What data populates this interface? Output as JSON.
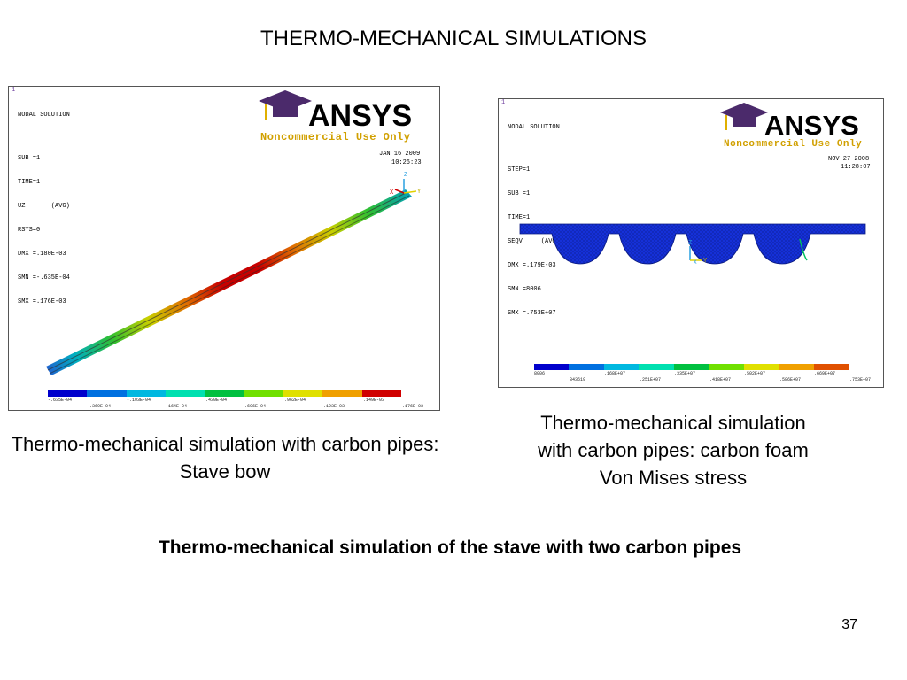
{
  "slide": {
    "title": "THERMO-MECHANICAL SIMULATIONS",
    "page_number": "37",
    "main_caption": "Thermo-mechanical simulation of the stave with two carbon pipes"
  },
  "left_figure": {
    "frame_number": "1",
    "header_lines": [
      "NODAL SOLUTION",
      "SUB =1",
      "TIME=1",
      "UZ       (AVG)",
      "RSYS=0",
      "DMX =.180E-03",
      "SMN =-.635E-04",
      "SMX =.176E-03"
    ],
    "date": "JAN 16 2009",
    "time": "10:26:23",
    "brand": "ANSYS",
    "watermark": "Noncommercial Use Only",
    "axis_labels": {
      "z": "Z",
      "y": "Y",
      "x": "X"
    },
    "colorbar_labels_top": [
      "-.635E-04",
      "-.103E-04",
      ".164E-04",
      ".430E-04",
      ".962E-04",
      ".149E-03"
    ],
    "colorbar_labels_bottom": [
      "-.369E-04",
      ".164E-04",
      ".696E-04",
      ".123E-03",
      ".176E-03"
    ],
    "caption": "Thermo-mechanical simulation with carbon pipes: Stave bow"
  },
  "right_figure": {
    "frame_number": "1",
    "header_lines": [
      "NODAL SOLUTION",
      "STEP=1",
      "SUB =1",
      "TIME=1",
      "SEQV     (AVG)",
      "DMX =.179E-03",
      "SMN =8006",
      "SMX =.753E+07"
    ],
    "date": "NOV 27 2008",
    "time": "11:28:07",
    "brand": "ANSYS",
    "watermark": "Noncommercial Use Only",
    "axis_labels": {
      "z": "Z",
      "y": "Y",
      "x": "X"
    },
    "colorbar_labels_top": [
      "8006",
      ".168E+07",
      ".335E+07",
      ".502E+07",
      ".669E+07"
    ],
    "colorbar_labels_bottom": [
      "843619",
      ".251E+07",
      ".418E+07",
      ".586E+07",
      ".753E+07"
    ],
    "caption_lines": [
      "Thermo-mechanical simulation",
      "with carbon pipes: carbon foam",
      "Von Mises stress"
    ]
  },
  "colors": {
    "ansys_colorbar": [
      "#0000cc",
      "#0070e0",
      "#00b8e0",
      "#00e0b0",
      "#00c040",
      "#70e000",
      "#e0e000",
      "#f0a000",
      "#e05000",
      "#d00000"
    ],
    "watermark": "#d1a000",
    "cap_purple": "#4b2a6b"
  }
}
